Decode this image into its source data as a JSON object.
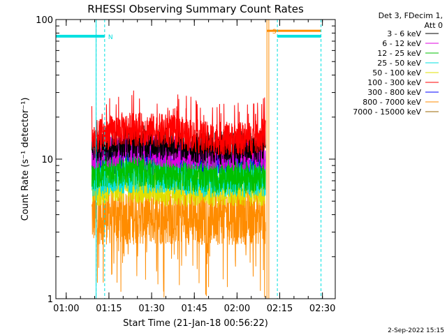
{
  "chart_data": {
    "type": "line",
    "title": "RHESSI Observing Summary Count Rates",
    "xlabel": "Start Time (21-Jan-18 00:56:22)",
    "ylabel": "Count Rate (s⁻¹ detector⁻¹)",
    "y_scale": "log",
    "ylim": [
      1,
      100
    ],
    "xlim": [
      "00:56:22",
      "02:34:30"
    ],
    "x_ticks": [
      "01:00",
      "01:15",
      "01:30",
      "01:45",
      "02:00",
      "02:15",
      "02:30"
    ],
    "y_ticks": [
      "1",
      "10",
      "100"
    ],
    "legend_title_lines": [
      "Det 3, FDecim 1,",
      "Att 0"
    ],
    "legend_position": "top-right",
    "grid": false,
    "series": [
      {
        "name": "3 - 6 keV",
        "color": "#000000",
        "x": [
          "01:09",
          "01:20",
          "01:35",
          "01:50",
          "02:05",
          "02:10"
        ],
        "y": [
          12,
          13.5,
          13,
          12,
          12,
          12.5
        ]
      },
      {
        "name": "6 - 12 keV",
        "color": "#e000e0",
        "x": [
          "01:09",
          "01:20",
          "01:35",
          "01:50",
          "02:05",
          "02:10"
        ],
        "y": [
          11,
          12,
          11.5,
          11,
          11,
          11
        ]
      },
      {
        "name": "12 - 25 keV",
        "color": "#00c000",
        "x": [
          "01:09",
          "01:20",
          "01:35",
          "01:50",
          "02:05",
          "02:10"
        ],
        "y": [
          8,
          8.5,
          8,
          7.5,
          7.5,
          8
        ]
      },
      {
        "name": "25 - 50 keV",
        "color": "#00e0e0",
        "x": [
          "01:09",
          "01:20",
          "01:35",
          "01:50",
          "02:05",
          "02:10"
        ],
        "y": [
          7,
          7.5,
          7.5,
          7,
          7,
          7
        ]
      },
      {
        "name": "50 - 100 keV",
        "color": "#e0e000",
        "x": [
          "01:09",
          "01:20",
          "01:35",
          "01:50",
          "02:05",
          "02:10"
        ],
        "y": [
          6,
          6.5,
          6,
          6,
          6,
          6
        ]
      },
      {
        "name": "100 - 300 keV",
        "color": "#ff0000",
        "x": [
          "01:09",
          "01:20",
          "01:35",
          "01:50",
          "02:05",
          "02:10"
        ],
        "y": [
          14,
          16.5,
          16,
          14,
          14,
          15
        ]
      },
      {
        "name": "300 - 800 keV",
        "color": "#0000ff",
        "x": [
          "01:09",
          "01:20",
          "01:35",
          "01:50",
          "02:05",
          "02:10"
        ],
        "y": [
          9,
          10,
          9.5,
          9,
          9,
          9
        ]
      },
      {
        "name": "800 - 7000 keV",
        "color": "#ff8c00",
        "x": [
          "01:09",
          "01:20",
          "01:35",
          "01:50",
          "02:05",
          "02:10"
        ],
        "y": [
          4,
          4,
          4,
          4,
          4,
          4
        ]
      },
      {
        "name": "7000 - 15000 keV",
        "color": "#996600",
        "x": [],
        "y": []
      }
    ],
    "time_ranges": [
      {
        "start": "00:56:22",
        "end": "01:10:30",
        "style": "solid",
        "color": "#00e0e0"
      },
      {
        "start": "01:10:30",
        "end": "01:13:30",
        "style": "dashed",
        "color": "#00e0e0"
      },
      {
        "start": "02:14:10",
        "end": "02:29:30",
        "style": "dashed",
        "color": "#00e0e0"
      }
    ],
    "annotations": [
      {
        "text": "N",
        "at": "01:13:30",
        "y": 76,
        "color": "#00e0e0"
      },
      {
        "text": "S",
        "at": "02:11:10",
        "y": 83,
        "color": "#ff8c00"
      }
    ],
    "saa_band": {
      "start": "02:10:30",
      "end": "02:29:30",
      "y": 83,
      "color": "#ff8c00"
    },
    "night_band": {
      "start": "00:56:22",
      "end": "01:13:30",
      "y": 76,
      "color": "#00e0e0"
    },
    "night_band_2": {
      "start": "02:14:10",
      "end": "02:29:30",
      "y": 76,
      "color": "#00e0e0"
    }
  },
  "footer": {
    "date_stamp": "2-Sep-2022 15:15"
  }
}
